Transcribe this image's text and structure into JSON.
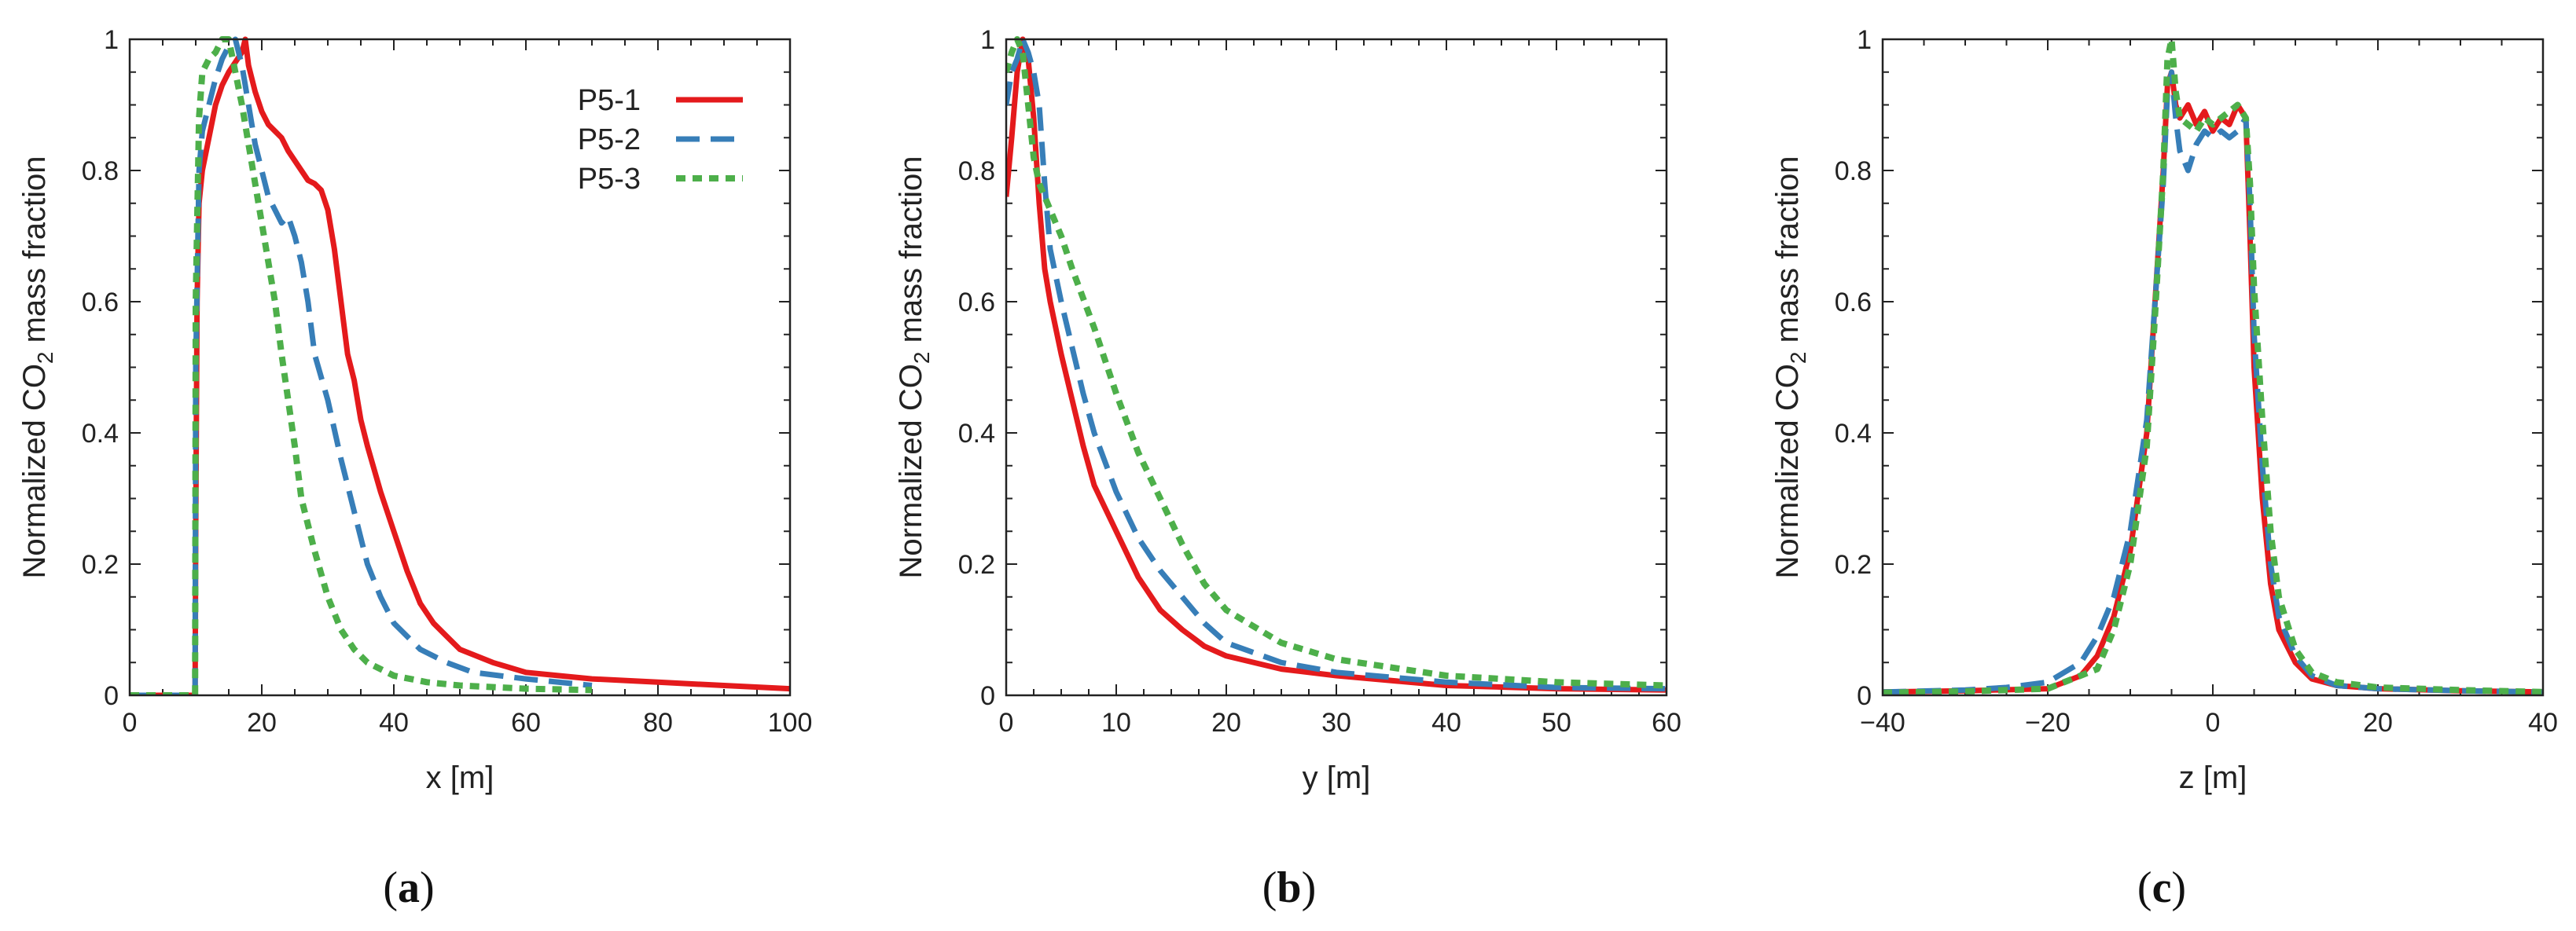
{
  "colors": {
    "P5-1": "#e41a1c",
    "P5-2": "#377eb8",
    "P5-3": "#4daf4a"
  },
  "legend": [
    "P5-1",
    "P5-2",
    "P5-3"
  ],
  "chart_data": [
    {
      "type": "line",
      "panel_label": {
        "open": "(",
        "letter": "a",
        "close": ")"
      },
      "xlabel": "x [m]",
      "ylabel": {
        "pre": "Normalized CO",
        "sub": "2",
        "post": " mass fraction"
      },
      "xlim": [
        0,
        100
      ],
      "ylim": [
        0,
        1
      ],
      "xticks": [
        0,
        20,
        40,
        60,
        80,
        100
      ],
      "yticks": [
        0,
        0.2,
        0.4,
        0.6,
        0.8,
        1
      ],
      "ytick_labels": [
        "0",
        "0.2",
        "0.4",
        "0.6",
        "0.8",
        "1"
      ],
      "legend_position": "top-right",
      "series": [
        {
          "name": "P5-1",
          "style": "solid",
          "x": [
            0,
            9.9,
            10,
            10.2,
            10.5,
            11,
            12,
            13,
            14,
            15,
            16,
            17,
            17.5,
            18,
            19,
            20,
            21,
            22,
            23,
            24,
            25,
            26,
            27,
            28,
            29,
            30,
            31,
            32,
            33,
            34,
            35,
            36,
            38,
            40,
            42,
            44,
            46,
            48,
            50,
            55,
            60,
            65,
            70,
            80,
            90,
            100
          ],
          "y": [
            0,
            0,
            0.25,
            0.6,
            0.75,
            0.8,
            0.85,
            0.9,
            0.93,
            0.95,
            0.965,
            0.98,
            1.0,
            0.96,
            0.92,
            0.89,
            0.87,
            0.86,
            0.85,
            0.83,
            0.815,
            0.8,
            0.785,
            0.78,
            0.77,
            0.74,
            0.68,
            0.6,
            0.52,
            0.48,
            0.42,
            0.38,
            0.31,
            0.25,
            0.19,
            0.14,
            0.11,
            0.09,
            0.07,
            0.05,
            0.035,
            0.03,
            0.025,
            0.02,
            0.015,
            0.01
          ]
        },
        {
          "name": "P5-2",
          "style": "dashed",
          "x": [
            0,
            9.9,
            10,
            10.5,
            11,
            12,
            13,
            14,
            15,
            16,
            17,
            18,
            19,
            20,
            21,
            22,
            23,
            24,
            25,
            26,
            27,
            28,
            30,
            32,
            34,
            36,
            38,
            40,
            44,
            48,
            52,
            56,
            60,
            70
          ],
          "y": [
            0,
            0,
            0.5,
            0.8,
            0.86,
            0.9,
            0.94,
            0.97,
            0.99,
            1.0,
            0.96,
            0.9,
            0.84,
            0.8,
            0.76,
            0.74,
            0.72,
            0.73,
            0.7,
            0.66,
            0.6,
            0.52,
            0.45,
            0.36,
            0.28,
            0.2,
            0.15,
            0.11,
            0.07,
            0.05,
            0.035,
            0.03,
            0.025,
            0.015
          ]
        },
        {
          "name": "P5-3",
          "style": "dotted",
          "x": [
            0,
            9.9,
            10,
            10.5,
            11,
            12,
            13,
            14,
            15,
            16,
            17,
            18,
            19,
            20,
            21,
            22,
            23,
            24,
            25,
            26,
            28,
            30,
            32,
            34,
            36,
            40,
            45,
            50,
            60,
            70
          ],
          "y": [
            0,
            0,
            0.6,
            0.88,
            0.95,
            0.97,
            0.98,
            1.0,
            1.0,
            0.95,
            0.9,
            0.84,
            0.78,
            0.72,
            0.66,
            0.6,
            0.52,
            0.45,
            0.38,
            0.3,
            0.22,
            0.15,
            0.1,
            0.07,
            0.05,
            0.03,
            0.02,
            0.015,
            0.01,
            0.008
          ]
        }
      ]
    },
    {
      "type": "line",
      "panel_label": {
        "open": "(",
        "letter": "b",
        "close": ")"
      },
      "xlabel": "y [m]",
      "ylabel": {
        "pre": "Normalized CO",
        "sub": "2",
        "post": " mass fraction"
      },
      "xlim": [
        0,
        60
      ],
      "ylim": [
        0,
        1
      ],
      "xticks": [
        0,
        10,
        20,
        30,
        40,
        50,
        60
      ],
      "yticks": [
        0,
        0.2,
        0.4,
        0.6,
        0.8,
        1
      ],
      "ytick_labels": [
        "0",
        "0.2",
        "0.4",
        "0.6",
        "0.8",
        "1"
      ],
      "series": [
        {
          "name": "P5-1",
          "style": "solid",
          "x": [
            0,
            0.5,
            1,
            1.5,
            2,
            2.5,
            3,
            3.5,
            4,
            5,
            6,
            7,
            8,
            10,
            12,
            14,
            16,
            18,
            20,
            25,
            30,
            40,
            50,
            60
          ],
          "y": [
            0.76,
            0.85,
            0.95,
            1.0,
            0.97,
            0.88,
            0.75,
            0.65,
            0.6,
            0.52,
            0.45,
            0.38,
            0.32,
            0.25,
            0.18,
            0.13,
            0.1,
            0.075,
            0.06,
            0.04,
            0.03,
            0.015,
            0.01,
            0.008
          ]
        },
        {
          "name": "P5-2",
          "style": "dashed",
          "x": [
            0,
            0.5,
            1,
            1.5,
            2,
            2.5,
            3,
            3.5,
            4,
            5,
            6,
            7,
            8,
            10,
            12,
            14,
            16,
            18,
            20,
            25,
            30,
            40,
            50,
            60
          ],
          "y": [
            0.9,
            0.95,
            0.97,
            1.0,
            0.98,
            0.95,
            0.9,
            0.78,
            0.68,
            0.6,
            0.53,
            0.46,
            0.4,
            0.31,
            0.24,
            0.19,
            0.15,
            0.11,
            0.08,
            0.05,
            0.035,
            0.02,
            0.012,
            0.01
          ]
        },
        {
          "name": "P5-3",
          "style": "dotted",
          "x": [
            0,
            0.5,
            1,
            1.5,
            2,
            2.5,
            3,
            3.5,
            4,
            5,
            6,
            8,
            10,
            12,
            14,
            16,
            18,
            20,
            25,
            30,
            40,
            50,
            60
          ],
          "y": [
            0.95,
            0.98,
            1.0,
            0.98,
            0.9,
            0.82,
            0.78,
            0.76,
            0.74,
            0.7,
            0.65,
            0.56,
            0.46,
            0.37,
            0.3,
            0.23,
            0.17,
            0.13,
            0.08,
            0.055,
            0.03,
            0.02,
            0.015
          ]
        }
      ]
    },
    {
      "type": "line",
      "panel_label": {
        "open": "(",
        "letter": "c",
        "close": ")"
      },
      "xlabel": "z [m]",
      "ylabel": {
        "pre": "Normalized CO",
        "sub": "2",
        "post": " mass fraction"
      },
      "xlim": [
        -40,
        40
      ],
      "ylim": [
        0,
        1
      ],
      "xticks": [
        -40,
        -20,
        0,
        20,
        40
      ],
      "xtick_labels": [
        "−40",
        "−20",
        "0",
        "20",
        "40"
      ],
      "yticks": [
        0,
        0.2,
        0.4,
        0.6,
        0.8,
        1
      ],
      "ytick_labels": [
        "0",
        "0.2",
        "0.4",
        "0.6",
        "0.8",
        "1"
      ],
      "series": [
        {
          "name": "P5-1",
          "style": "solid",
          "x": [
            -40,
            -30,
            -20,
            -16,
            -14,
            -12,
            -10,
            -8,
            -7,
            -6,
            -5.5,
            -5,
            -4.5,
            -4,
            -3,
            -2,
            -1,
            0,
            1,
            2,
            3,
            4,
            4.5,
            5,
            6,
            7,
            8,
            10,
            12,
            15,
            20,
            30,
            40
          ],
          "y": [
            0.005,
            0.007,
            0.01,
            0.03,
            0.06,
            0.12,
            0.22,
            0.4,
            0.6,
            0.8,
            0.93,
            0.95,
            0.9,
            0.88,
            0.9,
            0.87,
            0.89,
            0.86,
            0.88,
            0.87,
            0.9,
            0.88,
            0.7,
            0.5,
            0.3,
            0.17,
            0.1,
            0.05,
            0.025,
            0.015,
            0.01,
            0.007,
            0.005
          ]
        },
        {
          "name": "P5-2",
          "style": "dashed",
          "x": [
            -40,
            -30,
            -25,
            -20,
            -16,
            -14,
            -12,
            -10,
            -8,
            -7,
            -6,
            -5.5,
            -5,
            -4.5,
            -4,
            -3,
            -2,
            -1,
            0,
            1,
            2,
            3,
            4,
            4.5,
            5,
            6,
            7,
            8,
            10,
            12,
            15,
            20,
            30,
            40
          ],
          "y": [
            0.005,
            0.008,
            0.012,
            0.02,
            0.05,
            0.09,
            0.15,
            0.25,
            0.42,
            0.6,
            0.78,
            0.92,
            0.95,
            0.88,
            0.83,
            0.8,
            0.84,
            0.86,
            0.85,
            0.86,
            0.85,
            0.86,
            0.88,
            0.75,
            0.55,
            0.35,
            0.2,
            0.12,
            0.06,
            0.03,
            0.015,
            0.01,
            0.007,
            0.005
          ]
        },
        {
          "name": "P5-3",
          "style": "dotted",
          "x": [
            -40,
            -30,
            -20,
            -14,
            -12,
            -10,
            -8,
            -7,
            -6,
            -5.5,
            -5,
            -4.5,
            -4,
            -3,
            -2,
            -1,
            0,
            1,
            2,
            3,
            4,
            4.5,
            5,
            6,
            7,
            8,
            10,
            12,
            15,
            20,
            30,
            40
          ],
          "y": [
            0.004,
            0.006,
            0.01,
            0.04,
            0.1,
            0.2,
            0.38,
            0.58,
            0.8,
            0.97,
            1.0,
            0.92,
            0.88,
            0.87,
            0.86,
            0.88,
            0.87,
            0.88,
            0.89,
            0.9,
            0.88,
            0.78,
            0.62,
            0.42,
            0.25,
            0.15,
            0.07,
            0.035,
            0.02,
            0.012,
            0.008,
            0.005
          ]
        }
      ]
    }
  ]
}
